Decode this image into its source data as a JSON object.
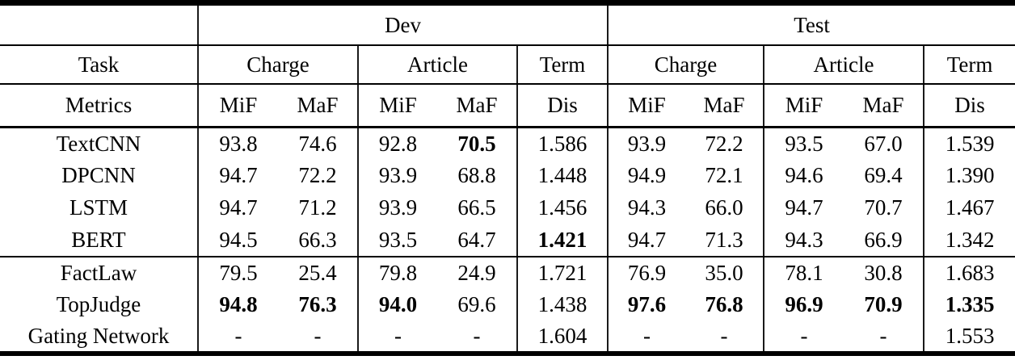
{
  "table": {
    "sections": {
      "dev": "Dev",
      "test": "Test"
    },
    "task_label": "Task",
    "metrics_label": "Metrics",
    "col_groups": {
      "charge": "Charge",
      "article": "Article",
      "term": "Term"
    },
    "metric_cols": {
      "mif": "MiF",
      "maf": "MaF",
      "dis": "Dis"
    },
    "rows": [
      {
        "name": "TextCNN",
        "group": 1,
        "values": [
          "93.8",
          "74.6",
          "92.8",
          "70.5",
          "1.586",
          "93.9",
          "72.2",
          "93.5",
          "67.0",
          "1.539"
        ],
        "bold": [
          3
        ]
      },
      {
        "name": "DPCNN",
        "group": 1,
        "values": [
          "94.7",
          "72.2",
          "93.9",
          "68.8",
          "1.448",
          "94.9",
          "72.1",
          "94.6",
          "69.4",
          "1.390"
        ],
        "bold": []
      },
      {
        "name": "LSTM",
        "group": 1,
        "values": [
          "94.7",
          "71.2",
          "93.9",
          "66.5",
          "1.456",
          "94.3",
          "66.0",
          "94.7",
          "70.7",
          "1.467"
        ],
        "bold": []
      },
      {
        "name": "BERT",
        "group": 1,
        "values": [
          "94.5",
          "66.3",
          "93.5",
          "64.7",
          "1.421",
          "94.7",
          "71.3",
          "94.3",
          "66.9",
          "1.342"
        ],
        "bold": [
          4
        ]
      },
      {
        "name": "FactLaw",
        "group": 2,
        "values": [
          "79.5",
          "25.4",
          "79.8",
          "24.9",
          "1.721",
          "76.9",
          "35.0",
          "78.1",
          "30.8",
          "1.683"
        ],
        "bold": []
      },
      {
        "name": "TopJudge",
        "group": 2,
        "values": [
          "94.8",
          "76.3",
          "94.0",
          "69.6",
          "1.438",
          "97.6",
          "76.8",
          "96.9",
          "70.9",
          "1.335"
        ],
        "bold": [
          0,
          1,
          2,
          5,
          6,
          7,
          8,
          9
        ]
      },
      {
        "name": "Gating Network",
        "group": 2,
        "values": [
          "-",
          "-",
          "-",
          "-",
          "1.604",
          "-",
          "-",
          "-",
          "-",
          "1.553"
        ],
        "bold": []
      }
    ]
  },
  "colors": {
    "text": "#000000",
    "rule": "#000000",
    "separator_bar": "#1a1a1a",
    "background": "#ffffff"
  }
}
